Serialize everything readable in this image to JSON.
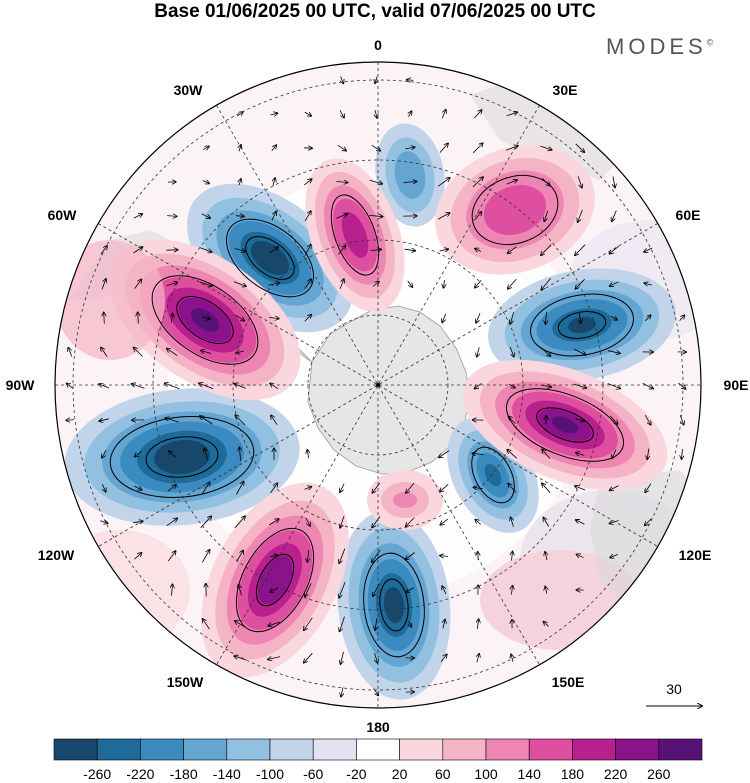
{
  "title": "Base 01/06/2025 00 UTC, valid 07/06/2025 00 UTC",
  "brand": {
    "text": "MODES",
    "mark": "©"
  },
  "map": {
    "projection": "south-polar-stereographic",
    "longitude_labels": {
      "top": "0",
      "top_right": "30E",
      "right_upper": "60E",
      "right": "90E",
      "right_lower": "120E",
      "bottom_right": "150E",
      "bottom": "180",
      "bottom_left": "150W",
      "left_lower": "120W",
      "left": "90W",
      "left_upper": "60W",
      "top_left": "30W"
    },
    "reference_vector": {
      "value": "30"
    }
  },
  "colorbar": {
    "colors": [
      "#17486b",
      "#1e6a98",
      "#3b8bc0",
      "#64a5d2",
      "#92c0e0",
      "#c2d4ea",
      "#e2e2f2",
      "#ffffff",
      "#fad7de",
      "#f5b4c6",
      "#ee86b3",
      "#de4fa0",
      "#b8208e",
      "#8a128a",
      "#571278"
    ],
    "ticks": [
      "-260",
      "-220",
      "-180",
      "-140",
      "-100",
      "-60",
      "-20",
      "20",
      "60",
      "100",
      "140",
      "180",
      "220",
      "260"
    ]
  }
}
